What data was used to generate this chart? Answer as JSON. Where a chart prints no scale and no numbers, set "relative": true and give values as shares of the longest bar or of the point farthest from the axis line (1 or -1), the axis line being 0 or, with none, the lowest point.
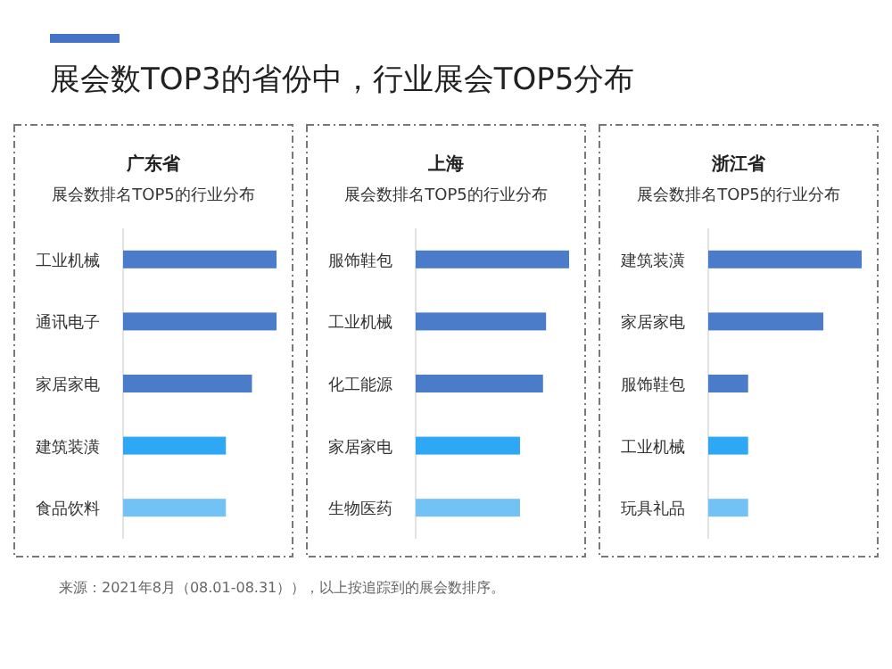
{
  "chart_data": [
    {
      "type": "other",
      "title": "展会数TOP3的省份中，行业展会TOP5分布",
      "annotations": [
        "来源：2021年8月（08.01-08.31）），以上按追踪到的展会数排序。"
      ]
    },
    {
      "type": "bar",
      "orientation": "horizontal",
      "relative": true,
      "title": "广东省",
      "subtitle": "展会数排名TOP5的行业分布",
      "categories": [
        "工业机械",
        "通讯电子",
        "家居家电",
        "建筑装潢",
        "食品饮料"
      ],
      "values": [
        1,
        1,
        0.84,
        0.67,
        0.67
      ],
      "colors": [
        "#4a7cc9",
        "#4a7cc9",
        "#4a7cc9",
        "#2ea8f4",
        "#72c2f6"
      ]
    },
    {
      "type": "bar",
      "orientation": "horizontal",
      "relative": true,
      "title": "上海",
      "subtitle": "展会数排名TOP5的行业分布",
      "categories": [
        "服饰鞋包",
        "工业机械",
        "化工能源",
        "家居家电",
        "生物医药"
      ],
      "values": [
        1,
        0.85,
        0.83,
        0.68,
        0.68
      ],
      "colors": [
        "#4a7cc9",
        "#4a7cc9",
        "#4a7cc9",
        "#2ea8f4",
        "#72c2f6"
      ]
    },
    {
      "type": "bar",
      "orientation": "horizontal",
      "relative": true,
      "title": "浙江省",
      "subtitle": "展会数排名TOP5的行业分布",
      "categories": [
        "建筑装潢",
        "家居家电",
        "服饰鞋包",
        "工业机械",
        "玩具礼品"
      ],
      "values": [
        1,
        0.75,
        0.26,
        0.26,
        0.26
      ],
      "colors": [
        "#4a7cc9",
        "#4a7cc9",
        "#4a7cc9",
        "#2ea8f4",
        "#72c2f6"
      ]
    }
  ]
}
